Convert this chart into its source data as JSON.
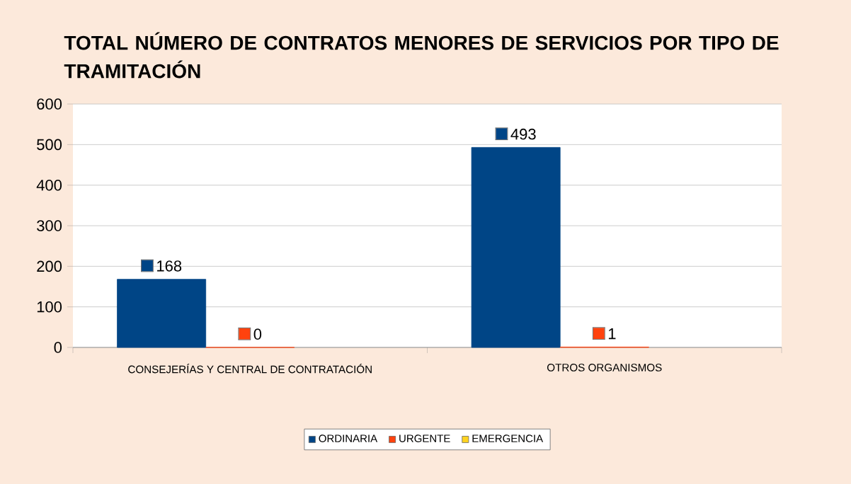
{
  "chart_data": {
    "type": "bar",
    "title": "TOTAL NÚMERO DE CONTRATOS MENORES DE SERVICIOS POR TIPO DE TRAMITACIÓN",
    "categories": [
      "CONSEJERÍAS Y CENTRAL DE CONTRATACIÓN",
      "OTROS ORGANISMOS"
    ],
    "series": [
      {
        "name": "ORDINARIA",
        "color": "#004586",
        "values": [
          168,
          493
        ]
      },
      {
        "name": "URGENTE",
        "color": "#ff420e",
        "values": [
          0,
          1
        ]
      },
      {
        "name": "EMERGENCIA",
        "color": "#ffd320",
        "values": [
          null,
          null
        ]
      }
    ],
    "ylim": [
      0,
      600
    ],
    "yticks": [
      0,
      100,
      200,
      300,
      400,
      500,
      600
    ],
    "grid": "y",
    "legend": "bottom",
    "data_labels": true
  }
}
